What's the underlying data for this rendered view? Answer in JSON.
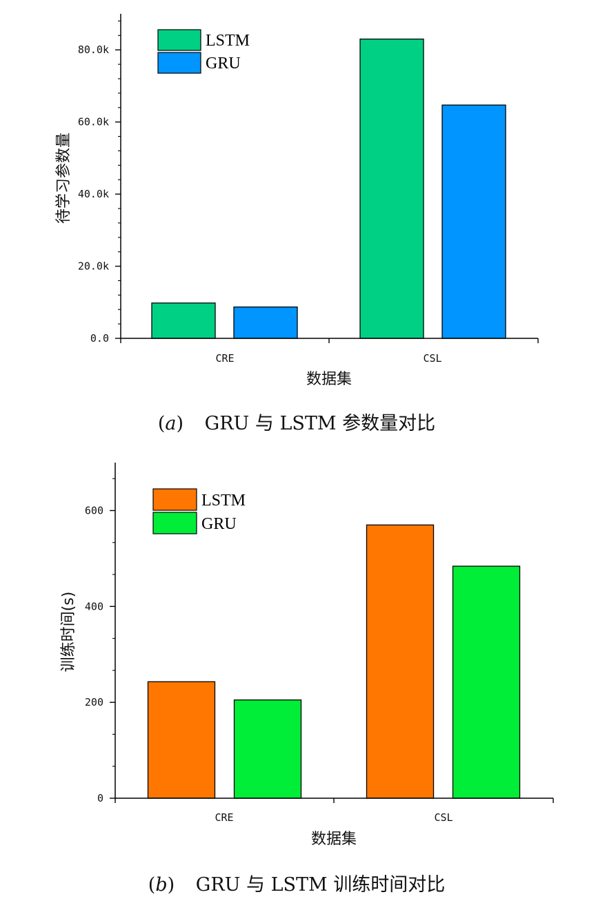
{
  "chart_data": [
    {
      "type": "bar",
      "caption_letter": "a",
      "caption_text": "GRU 与 LSTM 参数量对比",
      "title": "",
      "xlabel": "数据集",
      "ylabel": "待学习参数量",
      "categories": [
        "CRE",
        "CSL"
      ],
      "series": [
        {
          "name": "LSTM",
          "color": "#00d084",
          "values": [
            9800,
            83000
          ]
        },
        {
          "name": "GRU",
          "color": "#0095ff",
          "values": [
            8700,
            64700
          ]
        }
      ],
      "ylim": [
        0,
        90000
      ],
      "yticks": [
        0,
        20000,
        40000,
        60000,
        80000
      ],
      "ytick_labels": [
        "0.0",
        "20.0k",
        "40.0k",
        "60.0k",
        "80.0k"
      ],
      "minor_yticks": true,
      "grid": false,
      "legend_position": "top-left"
    },
    {
      "type": "bar",
      "caption_letter": "b",
      "caption_text": "GRU 与 LSTM 训练时间对比",
      "title": "",
      "xlabel": "数据集",
      "ylabel": "训练时间(s)",
      "categories": [
        "CRE",
        "CSL"
      ],
      "series": [
        {
          "name": "LSTM",
          "color": "#ff7700",
          "values": [
            243,
            570
          ]
        },
        {
          "name": "GRU",
          "color": "#00ee38",
          "values": [
            205,
            484
          ]
        }
      ],
      "ylim": [
        0,
        700
      ],
      "yticks": [
        0,
        200,
        400,
        600
      ],
      "ytick_labels": [
        "0",
        "200",
        "400",
        "600"
      ],
      "minor_yticks": true,
      "grid": false,
      "legend_position": "top-left"
    }
  ]
}
